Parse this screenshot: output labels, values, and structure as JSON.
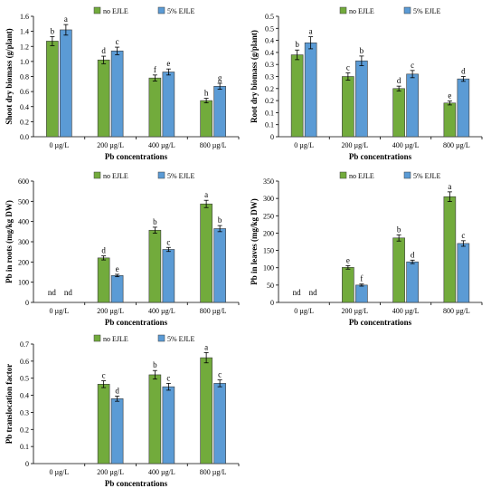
{
  "colors": {
    "no_ejle": "#72ab3c",
    "ejle_5": "#5b9bd5"
  },
  "chart_data": [
    {
      "id": "shoot",
      "type": "bar",
      "categories": [
        "0 µg/L",
        "200 µg/L",
        "400 µg/L",
        "800 µg/L"
      ],
      "xlabel": "Pb concentrations",
      "ylabel": "Shoot dry biomass (g/plant)",
      "ylim": [
        0,
        1.6
      ],
      "yticks": [
        "0.0",
        "0.2",
        "0.4",
        "0.6",
        "0.8",
        "1.0",
        "1.2",
        "1.4",
        "1.6"
      ],
      "legend_position": "top",
      "series": [
        {
          "name": "no EJLE",
          "values": [
            1.27,
            1.02,
            0.78,
            0.48
          ],
          "errors": [
            0.06,
            0.05,
            0.04,
            0.03
          ],
          "labels": [
            "b",
            "d",
            "f",
            "h"
          ],
          "present": [
            true,
            true,
            true,
            true
          ]
        },
        {
          "name": "5% EJLE",
          "values": [
            1.42,
            1.14,
            0.86,
            0.67
          ],
          "errors": [
            0.07,
            0.05,
            0.04,
            0.04
          ],
          "labels": [
            "a",
            "c",
            "e",
            "g"
          ],
          "present": [
            true,
            true,
            true,
            true
          ]
        }
      ]
    },
    {
      "id": "root",
      "type": "bar",
      "categories": [
        "0 µg/L",
        "200 µg/L",
        "400 µg/L",
        "800 µg/L"
      ],
      "xlabel": "Pb concentrations",
      "ylabel": "Root dry biomass (g/plant)",
      "ylim": [
        0,
        0.5
      ],
      "yticks": [
        "0",
        "0.1",
        "0.1",
        "0.2",
        "0.2",
        "0.3",
        "0.3",
        "0.4",
        "0.4",
        "0.5",
        "0.5"
      ],
      "legend_position": "top",
      "series": [
        {
          "name": "no EJLE",
          "values": [
            0.34,
            0.25,
            0.2,
            0.14
          ],
          "errors": [
            0.02,
            0.015,
            0.01,
            0.008
          ],
          "labels": [
            "b",
            "c",
            "d",
            "e"
          ],
          "present": [
            true,
            true,
            true,
            true
          ]
        },
        {
          "name": "5% EJLE",
          "values": [
            0.39,
            0.315,
            0.26,
            0.24
          ],
          "errors": [
            0.025,
            0.02,
            0.015,
            0.01
          ],
          "labels": [
            "a",
            "b",
            "c",
            "d"
          ],
          "present": [
            true,
            true,
            true,
            true
          ]
        }
      ]
    },
    {
      "id": "pbroots",
      "type": "bar",
      "categories": [
        "0 µg/L",
        "200 µg/L",
        "400 µg/L",
        "800 µg/L"
      ],
      "xlabel": "Pb concentrations",
      "ylabel": "Pb in roots (mg/kg DW)",
      "ylim": [
        0,
        600
      ],
      "yticks": [
        "0",
        "100",
        "200",
        "300",
        "400",
        "500",
        "600"
      ],
      "legend_position": "top",
      "series": [
        {
          "name": "no EJLE",
          "values": [
            0,
            220,
            357,
            487
          ],
          "errors": [
            0,
            10,
            15,
            18
          ],
          "labels": [
            "nd",
            "d",
            "b",
            "a"
          ],
          "present": [
            false,
            true,
            true,
            true
          ]
        },
        {
          "name": "5% EJLE",
          "values": [
            0,
            133,
            262,
            365
          ],
          "errors": [
            0,
            6,
            10,
            15
          ],
          "labels": [
            "nd",
            "e",
            "c",
            "b"
          ],
          "present": [
            false,
            true,
            true,
            true
          ]
        }
      ]
    },
    {
      "id": "pbleaves",
      "type": "bar",
      "categories": [
        "0 µg/L",
        "200 µg/L",
        "400 µg/L",
        "800 µg/L"
      ],
      "xlabel": "Pb concentrations",
      "ylabel": "Pb in leaves (mg/kg DW)",
      "ylim": [
        0,
        350
      ],
      "yticks": [
        "0",
        "50",
        "100",
        "150",
        "200",
        "250",
        "300",
        "350"
      ],
      "legend_position": "top",
      "series": [
        {
          "name": "no EJLE",
          "values": [
            0,
            101,
            186,
            305
          ],
          "errors": [
            0,
            5,
            9,
            14
          ],
          "labels": [
            "nd",
            "e",
            "b",
            "a"
          ],
          "present": [
            false,
            true,
            true,
            true
          ]
        },
        {
          "name": "5% EJLE",
          "values": [
            0,
            50,
            117,
            170
          ],
          "errors": [
            0,
            3,
            5,
            8
          ],
          "labels": [
            "nd",
            "f",
            "d",
            "c"
          ],
          "present": [
            false,
            true,
            true,
            true
          ]
        }
      ]
    },
    {
      "id": "transloc",
      "type": "bar",
      "categories": [
        "0 µg/L",
        "200 µg/L",
        "400 µg/L",
        "800 µg/L"
      ],
      "xlabel": "Pb concentrations",
      "ylabel": "Pb translocation factor",
      "ylim": [
        0,
        0.7
      ],
      "yticks": [
        "0",
        "0.1",
        "0.2",
        "0.3",
        "0.4",
        "0.5",
        "0.6",
        "0.7"
      ],
      "legend_position": "top",
      "series": [
        {
          "name": "no EJLE",
          "values": [
            0,
            0.465,
            0.52,
            0.62
          ],
          "errors": [
            0,
            0.02,
            0.025,
            0.03
          ],
          "labels": [
            "",
            "c",
            "b",
            "a"
          ],
          "present": [
            false,
            true,
            true,
            true
          ]
        },
        {
          "name": "5% EJLE",
          "values": [
            0,
            0.38,
            0.45,
            0.47
          ],
          "errors": [
            0,
            0.015,
            0.02,
            0.02
          ],
          "labels": [
            "",
            "d",
            "c",
            "c"
          ],
          "present": [
            false,
            true,
            true,
            true
          ]
        }
      ]
    }
  ]
}
